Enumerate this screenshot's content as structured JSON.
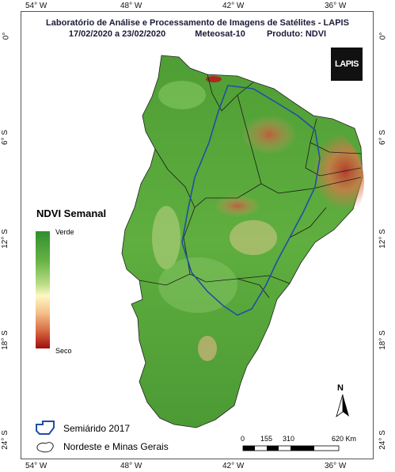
{
  "header": {
    "line1": "Laboratório de Análise e Processamento de Imagens de Satélites - LAPIS",
    "line2_dates": "17/02/2020  a  23/02/2020",
    "line2_satellite": "Meteosat-10",
    "line2_product": "Produto: NDVI"
  },
  "logo": {
    "text": "LAPIS"
  },
  "axes": {
    "lon_ticks": [
      "54° W",
      "48° W",
      "42° W",
      "36° W"
    ],
    "lat_ticks": [
      "0°",
      "6° S",
      "12° S",
      "18° S",
      "24° S"
    ]
  },
  "legend": {
    "title": "NDVI Semanal",
    "high_label": "Verde",
    "low_label": "Seco",
    "colors": [
      "#2f8f2f",
      "#66b244",
      "#b9dc86",
      "#fff7c4",
      "#f4bf8a",
      "#d86a43",
      "#a10d0d"
    ],
    "semiarid_label": "Semiárido 2017",
    "semiarid_color": "#1f4ea8",
    "region_label": "Nordeste e Minas Gerais"
  },
  "scale": {
    "ticks": [
      "0",
      "155",
      "310",
      "620 Km"
    ]
  },
  "north": {
    "label": "N"
  }
}
